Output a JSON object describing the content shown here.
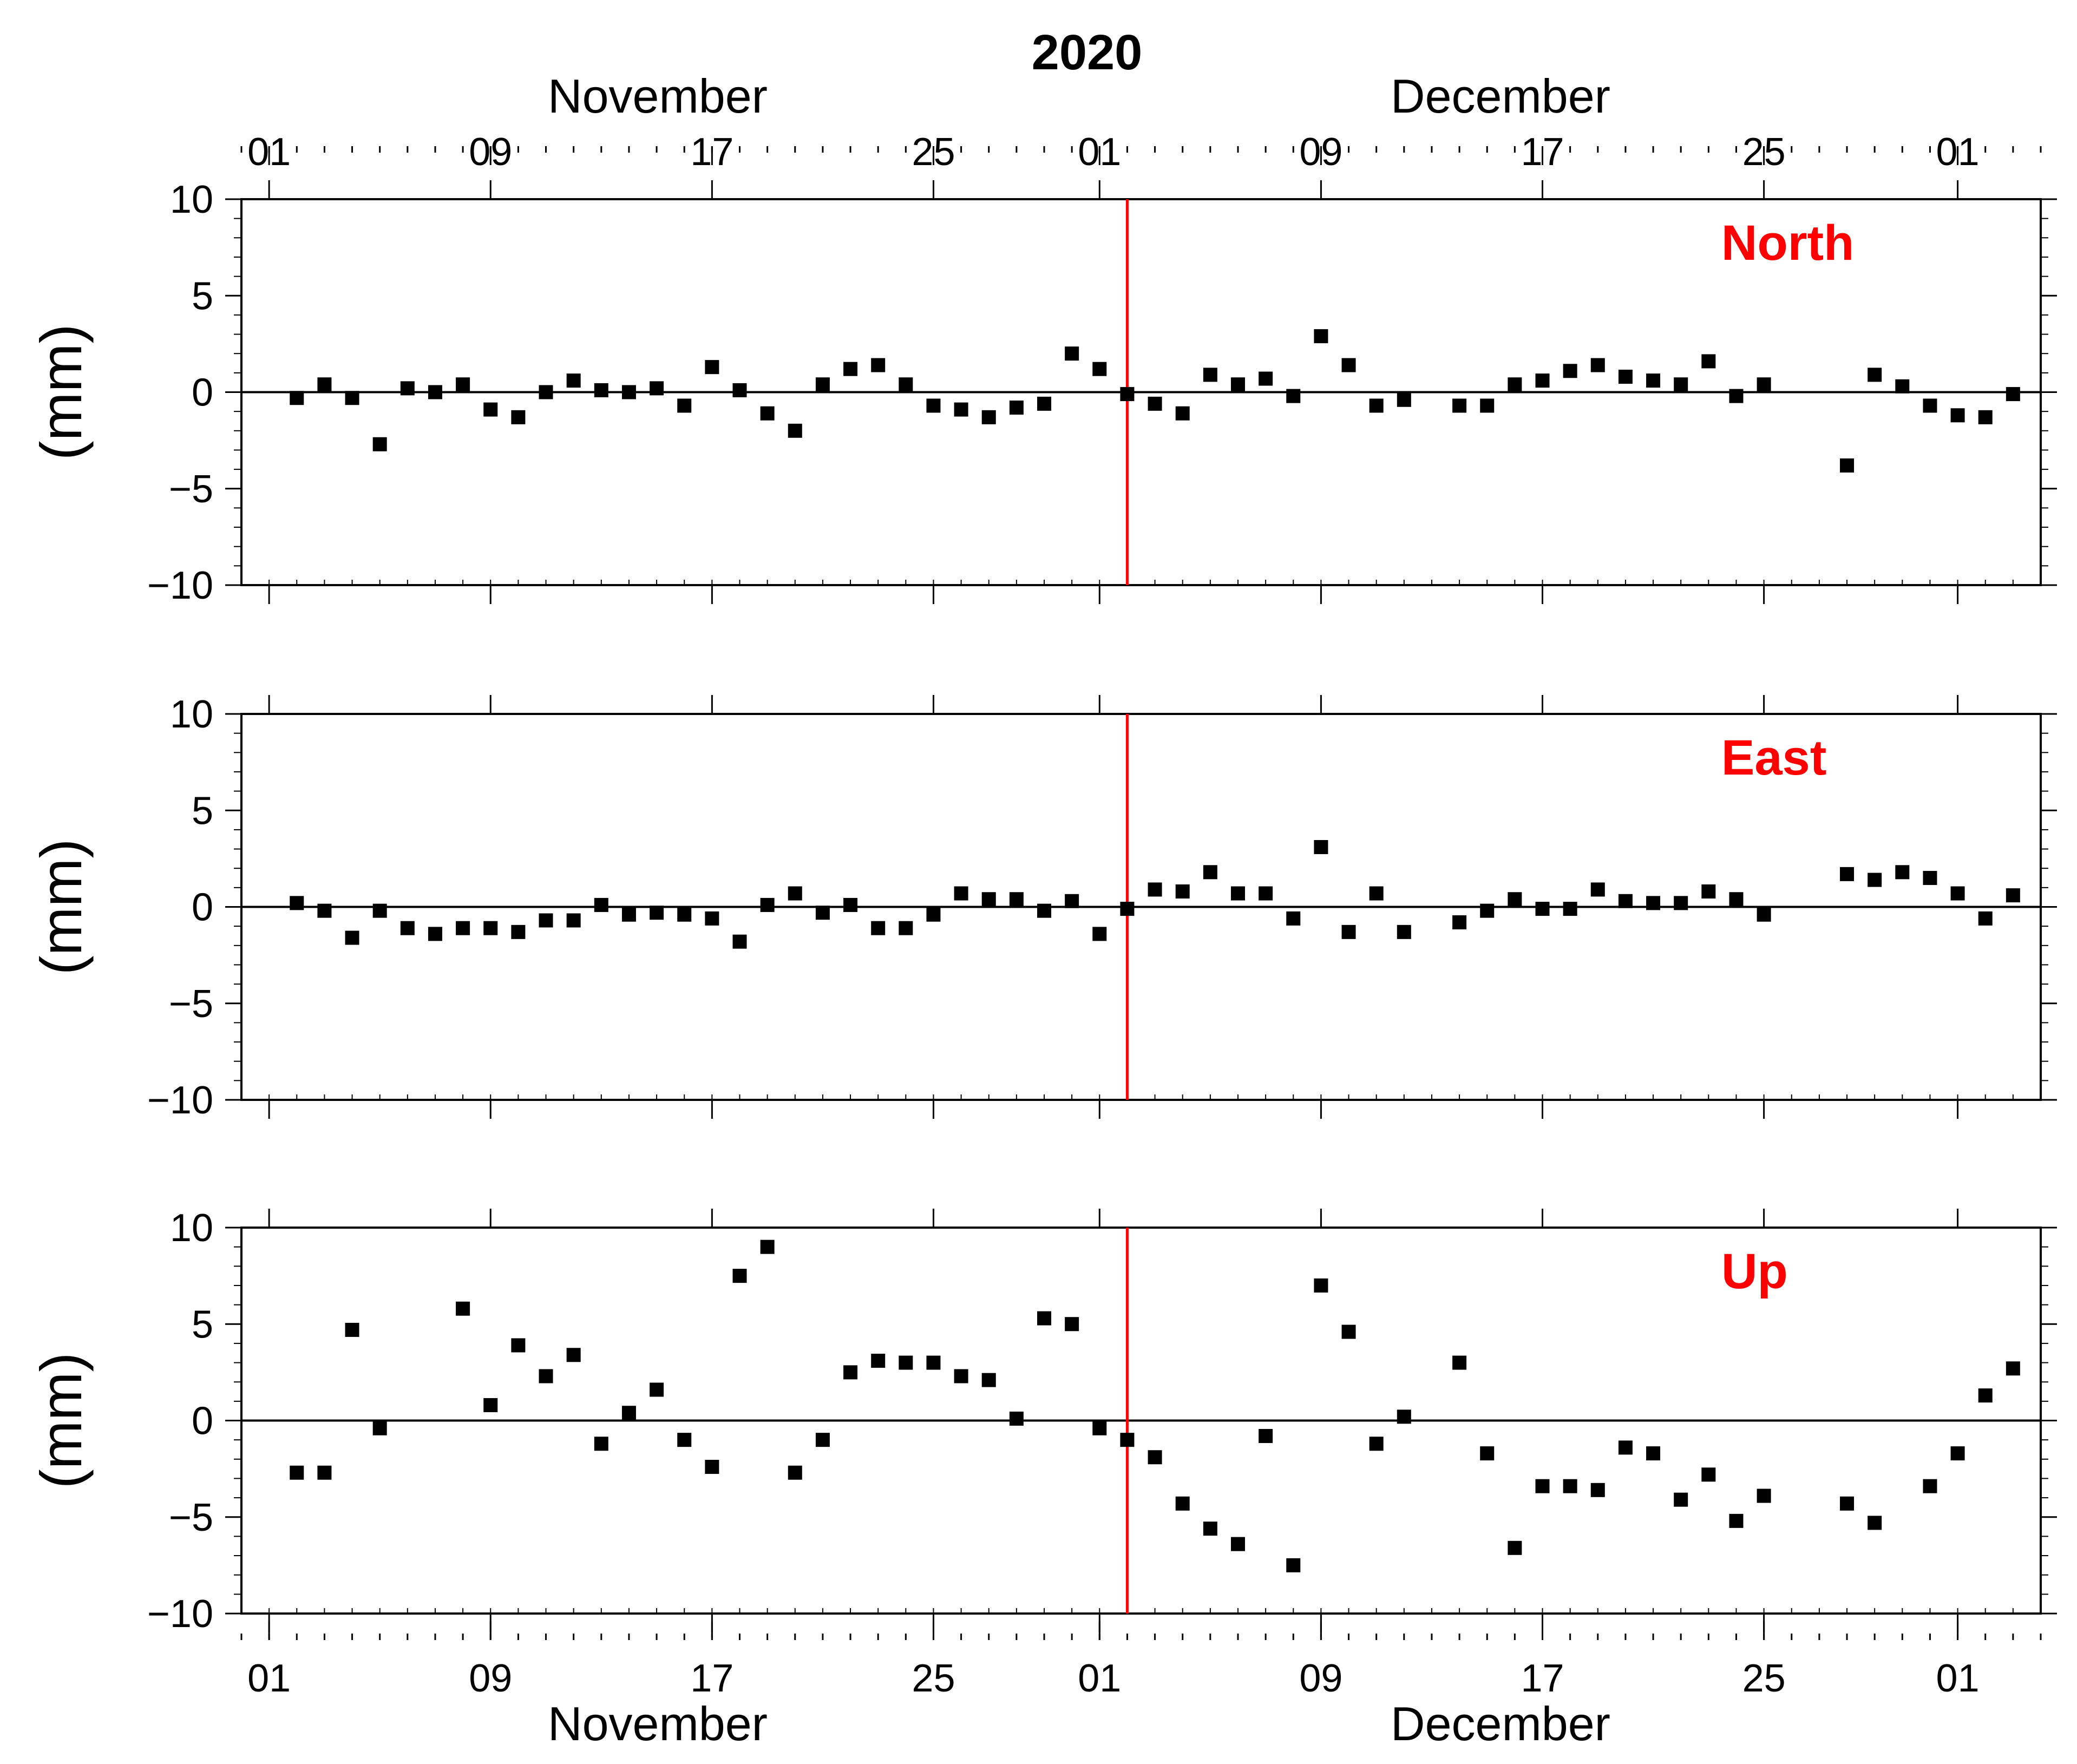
{
  "figure": {
    "year": "2020",
    "top_month_labels": [
      "November",
      "December"
    ],
    "bottom_month_labels": [
      "November",
      "December"
    ],
    "x_tick_labels": [
      "01",
      "09",
      "17",
      "25",
      "01",
      "09",
      "17",
      "25",
      "01"
    ],
    "y_tick_labels": [
      "10",
      "5",
      "0",
      "−5",
      "−10"
    ],
    "event_line_color": "#ff0000",
    "panel_label_color": "#ff0000",
    "marker_color": "#000000"
  },
  "chart_data": [
    {
      "type": "scatter",
      "label": "North",
      "ylabel": "(mm)",
      "ylim": [
        -10,
        10
      ],
      "xlim": [
        "2020-10-31",
        "2021-01-04"
      ],
      "event_date": "2020-12-02",
      "grid": false,
      "zero_line": true,
      "x": [
        "2020-11-02",
        "2020-11-03",
        "2020-11-04",
        "2020-11-05",
        "2020-11-06",
        "2020-11-07",
        "2020-11-08",
        "2020-11-09",
        "2020-11-10",
        "2020-11-11",
        "2020-11-12",
        "2020-11-13",
        "2020-11-14",
        "2020-11-15",
        "2020-11-16",
        "2020-11-17",
        "2020-11-18",
        "2020-11-19",
        "2020-11-20",
        "2020-11-21",
        "2020-11-22",
        "2020-11-23",
        "2020-11-24",
        "2020-11-25",
        "2020-11-26",
        "2020-11-27",
        "2020-11-28",
        "2020-11-29",
        "2020-11-30",
        "2020-12-01",
        "2020-12-02",
        "2020-12-03",
        "2020-12-04",
        "2020-12-05",
        "2020-12-06",
        "2020-12-07",
        "2020-12-08",
        "2020-12-09",
        "2020-12-10",
        "2020-12-11",
        "2020-12-12",
        "2020-12-14",
        "2020-12-15",
        "2020-12-16",
        "2020-12-17",
        "2020-12-18",
        "2020-12-19",
        "2020-12-20",
        "2020-12-21",
        "2020-12-22",
        "2020-12-23",
        "2020-12-24",
        "2020-12-25",
        "2020-12-28",
        "2020-12-29",
        "2020-12-30",
        "2020-12-31",
        "2021-01-01",
        "2021-01-02",
        "2021-01-03"
      ],
      "y": [
        -0.3,
        0.4,
        -0.3,
        -2.7,
        0.2,
        0.0,
        0.4,
        -0.9,
        -1.3,
        0.0,
        0.6,
        0.1,
        0.0,
        0.2,
        -0.7,
        1.3,
        0.1,
        -1.1,
        -2.0,
        0.4,
        1.2,
        1.4,
        0.4,
        -0.7,
        -0.9,
        -1.3,
        -0.8,
        -0.6,
        2.0,
        1.2,
        -0.1,
        -0.6,
        -1.1,
        0.9,
        0.4,
        0.7,
        -0.2,
        2.9,
        1.4,
        -0.7,
        -0.4,
        -0.7,
        -0.7,
        0.4,
        0.6,
        1.1,
        1.4,
        0.8,
        0.6,
        0.4,
        1.6,
        -0.2,
        0.4,
        -3.8,
        0.9,
        0.3,
        -0.7,
        -1.2,
        -1.3,
        -0.1
      ]
    },
    {
      "type": "scatter",
      "label": "East",
      "ylabel": "(mm)",
      "ylim": [
        -10,
        10
      ],
      "xlim": [
        "2020-10-31",
        "2021-01-04"
      ],
      "event_date": "2020-12-02",
      "grid": false,
      "zero_line": true,
      "x": [
        "2020-11-02",
        "2020-11-03",
        "2020-11-04",
        "2020-11-05",
        "2020-11-06",
        "2020-11-07",
        "2020-11-08",
        "2020-11-09",
        "2020-11-10",
        "2020-11-11",
        "2020-11-12",
        "2020-11-13",
        "2020-11-14",
        "2020-11-15",
        "2020-11-16",
        "2020-11-17",
        "2020-11-18",
        "2020-11-19",
        "2020-11-20",
        "2020-11-21",
        "2020-11-22",
        "2020-11-23",
        "2020-11-24",
        "2020-11-25",
        "2020-11-26",
        "2020-11-27",
        "2020-11-28",
        "2020-11-29",
        "2020-11-30",
        "2020-12-01",
        "2020-12-02",
        "2020-12-03",
        "2020-12-04",
        "2020-12-05",
        "2020-12-06",
        "2020-12-07",
        "2020-12-08",
        "2020-12-09",
        "2020-12-10",
        "2020-12-11",
        "2020-12-12",
        "2020-12-14",
        "2020-12-15",
        "2020-12-16",
        "2020-12-17",
        "2020-12-18",
        "2020-12-19",
        "2020-12-20",
        "2020-12-21",
        "2020-12-22",
        "2020-12-23",
        "2020-12-24",
        "2020-12-25",
        "2020-12-28",
        "2020-12-29",
        "2020-12-30",
        "2020-12-31",
        "2021-01-01",
        "2021-01-02",
        "2021-01-03"
      ],
      "y": [
        0.2,
        -0.2,
        -1.6,
        -0.2,
        -1.1,
        -1.4,
        -1.1,
        -1.1,
        -1.3,
        -0.7,
        -0.7,
        0.1,
        -0.4,
        -0.3,
        -0.4,
        -0.6,
        -1.8,
        0.1,
        0.7,
        -0.3,
        0.1,
        -1.1,
        -1.1,
        -0.4,
        0.7,
        0.4,
        0.4,
        -0.2,
        0.3,
        -1.4,
        -0.1,
        0.9,
        0.8,
        1.8,
        0.7,
        0.7,
        -0.6,
        3.1,
        -1.3,
        0.7,
        -1.3,
        -0.8,
        -0.2,
        0.4,
        -0.1,
        -0.1,
        0.9,
        0.3,
        0.2,
        0.2,
        0.8,
        0.4,
        -0.4,
        1.7,
        1.4,
        1.8,
        1.5,
        0.7,
        -0.6,
        0.6
      ]
    },
    {
      "type": "scatter",
      "label": "Up",
      "ylabel": "(mm)",
      "ylim": [
        -10,
        10
      ],
      "xlim": [
        "2020-10-31",
        "2021-01-04"
      ],
      "event_date": "2020-12-02",
      "grid": false,
      "zero_line": true,
      "x": [
        "2020-11-02",
        "2020-11-03",
        "2020-11-04",
        "2020-11-05",
        "2020-11-08",
        "2020-11-09",
        "2020-11-10",
        "2020-11-11",
        "2020-11-12",
        "2020-11-13",
        "2020-11-14",
        "2020-11-15",
        "2020-11-16",
        "2020-11-17",
        "2020-11-18",
        "2020-11-19",
        "2020-11-20",
        "2020-11-21",
        "2020-11-22",
        "2020-11-23",
        "2020-11-24",
        "2020-11-25",
        "2020-11-26",
        "2020-11-27",
        "2020-11-28",
        "2020-11-29",
        "2020-11-30",
        "2020-12-01",
        "2020-12-02",
        "2020-12-03",
        "2020-12-04",
        "2020-12-05",
        "2020-12-06",
        "2020-12-07",
        "2020-12-08",
        "2020-12-09",
        "2020-12-10",
        "2020-12-11",
        "2020-12-12",
        "2020-12-14",
        "2020-12-15",
        "2020-12-16",
        "2020-12-17",
        "2020-12-18",
        "2020-12-19",
        "2020-12-20",
        "2020-12-21",
        "2020-12-22",
        "2020-12-23",
        "2020-12-24",
        "2020-12-25",
        "2020-12-28",
        "2020-12-29",
        "2020-12-31",
        "2021-01-01",
        "2021-01-02",
        "2021-01-03"
      ],
      "y": [
        -2.7,
        -2.7,
        4.7,
        -0.4,
        5.8,
        0.8,
        3.9,
        2.3,
        3.4,
        -1.2,
        0.4,
        1.6,
        -1.0,
        -2.4,
        7.5,
        9.0,
        -2.7,
        -1.0,
        2.5,
        3.1,
        3.0,
        3.0,
        2.3,
        2.1,
        0.1,
        5.3,
        5.0,
        -0.4,
        -1.0,
        -1.9,
        -4.3,
        -5.6,
        -6.4,
        -0.8,
        -7.5,
        7.0,
        4.6,
        -1.2,
        0.2,
        3.0,
        -1.7,
        -6.6,
        -3.4,
        -3.4,
        -3.6,
        -1.4,
        -1.7,
        -4.1,
        -2.8,
        -5.2,
        -3.9,
        -4.3,
        -5.3,
        -3.4,
        -1.7,
        1.3,
        2.7
      ]
    }
  ]
}
